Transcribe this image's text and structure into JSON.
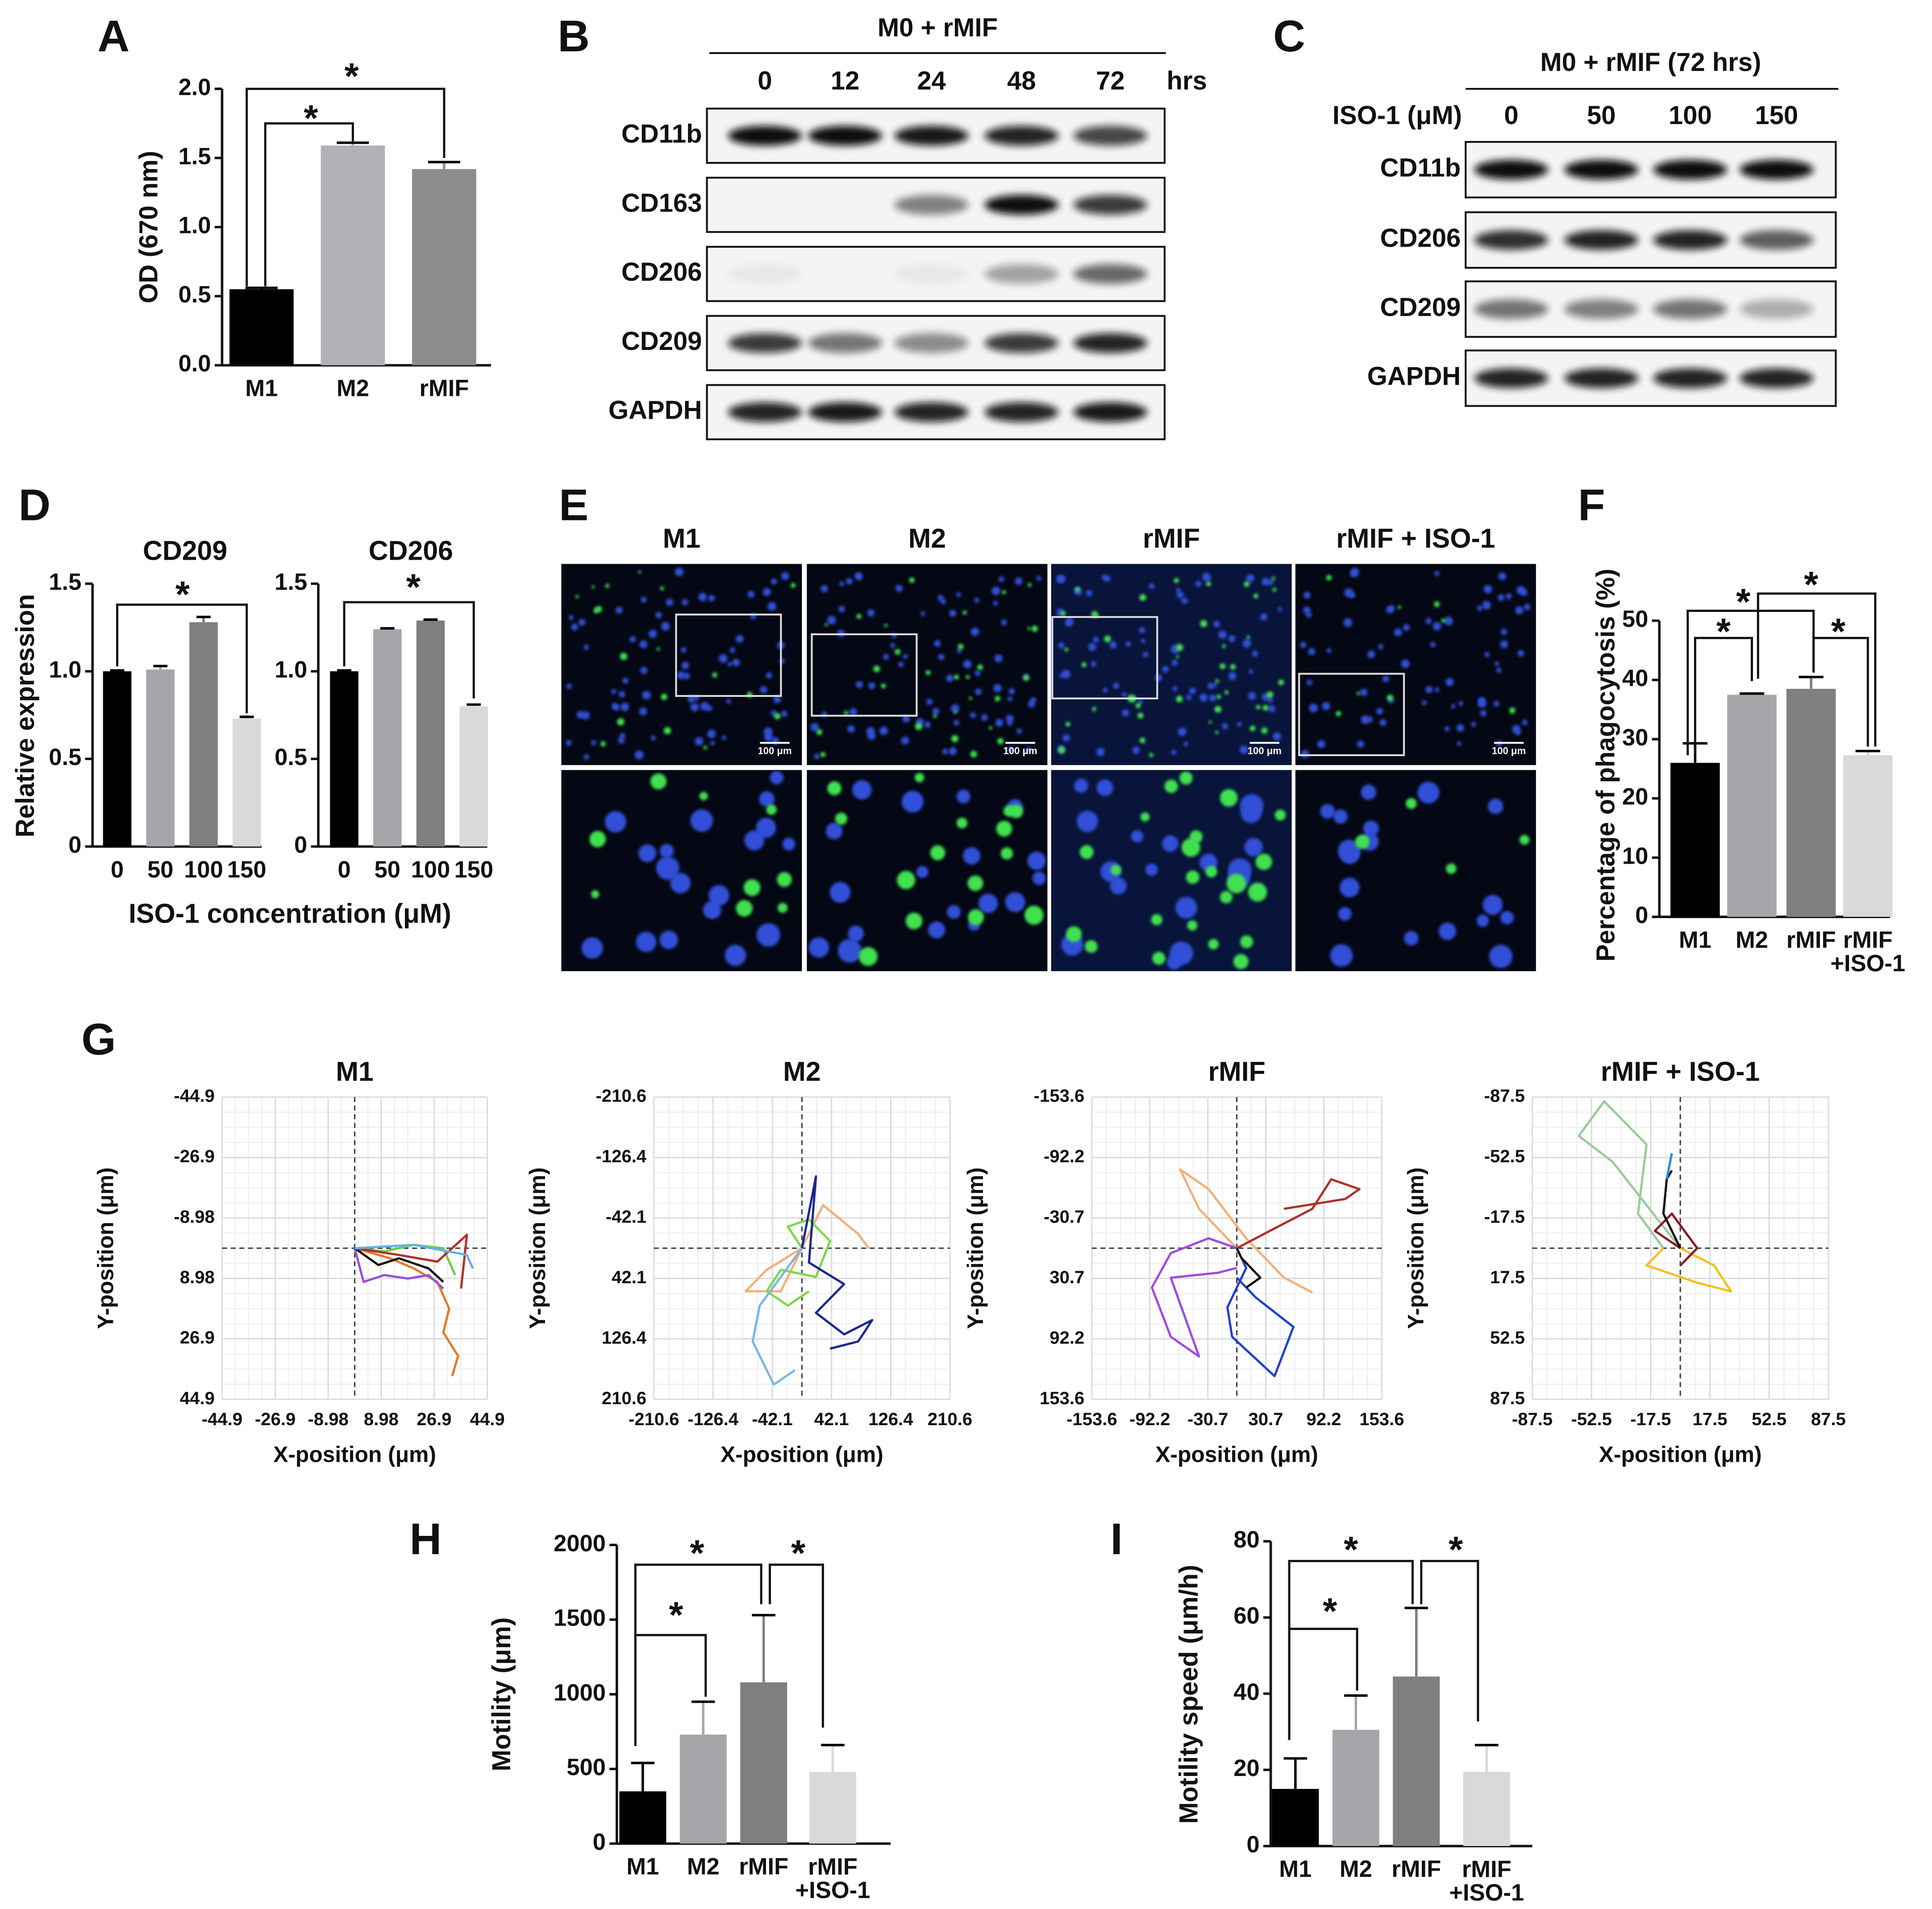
{
  "panel_labels": [
    "A",
    "B",
    "C",
    "D",
    "E",
    "F",
    "G",
    "H",
    "I"
  ],
  "blot_b": {
    "header": "M0 + rMIF",
    "lanes": [
      "0",
      "12",
      "24",
      "48",
      "72"
    ],
    "unit": "hrs",
    "proteins": [
      "CD11b",
      "CD163",
      "CD206",
      "CD209",
      "GAPDH"
    ]
  },
  "blot_c": {
    "header": "M0 + rMIF (72 hrs)",
    "treatment": "ISO-1 (μM)",
    "lanes": [
      "0",
      "50",
      "100",
      "150"
    ],
    "proteins": [
      "CD11b",
      "CD206",
      "CD209",
      "GAPDH"
    ]
  },
  "micrographs": {
    "groups": [
      "M1",
      "M2",
      "rMIF",
      "rMIF + ISO-1"
    ],
    "scale_bar": "100 μm"
  },
  "chart_data": [
    {
      "type": "bar",
      "ylabel": "OD (670 nm)",
      "categories": [
        "M1",
        "M2",
        "rMIF"
      ],
      "values": [
        0.55,
        1.59,
        1.42
      ],
      "errors": [
        0.01,
        0.02,
        0.05
      ],
      "colors": [
        "#000000",
        "#b2b2b6",
        "#8c8c8c"
      ],
      "ylim": [
        0,
        2
      ],
      "yticks": [
        {
          "value": 0,
          "label": "0.0"
        },
        0.5,
        {
          "value": 1,
          "label": "1.0"
        },
        1.5,
        {
          "value": 2,
          "label": "2.0"
        }
      ],
      "annotations": [
        "*",
        "*"
      ]
    },
    {
      "type": "bar",
      "title": "CD209",
      "ylabel": "Relative expression",
      "xlabel": "ISO-1 concentration (μM)",
      "categories": [
        "0",
        "50",
        "100",
        "150"
      ],
      "values": [
        1.0,
        1.01,
        1.28,
        0.73
      ],
      "errors": [
        0.005,
        0.02,
        0.03,
        0.01
      ],
      "colors": [
        "#000000",
        "#a6a6aa",
        "#7f7f7f",
        "#d9d9d9"
      ],
      "ylim": [
        0,
        1.5
      ],
      "yticks": [
        0,
        0.5,
        {
          "value": 1,
          "label": "1.0"
        },
        1.5
      ],
      "annotations": [
        "*"
      ]
    },
    {
      "type": "bar",
      "title": "CD206",
      "categories": [
        "0",
        "50",
        "100",
        "150"
      ],
      "values": [
        1.0,
        1.24,
        1.29,
        0.8
      ],
      "errors": [
        0.005,
        0.005,
        0.005,
        0.01
      ],
      "colors": [
        "#000000",
        "#a6a6aa",
        "#7f7f7f",
        "#d9d9d9"
      ],
      "ylim": [
        0,
        1.5
      ],
      "yticks": [
        0,
        0.5,
        {
          "value": 1,
          "label": "1.0"
        },
        1.5
      ],
      "annotations": [
        "*"
      ]
    },
    {
      "type": "bar",
      "ylabel": "Percentage of phagocytosis (%)",
      "categories": [
        "M1",
        "M2",
        "rMIF",
        "rMIF\n+ISO-1"
      ],
      "values": [
        26,
        37.5,
        38.5,
        27.3
      ],
      "errors": [
        3.3,
        0.2,
        2,
        0.7
      ],
      "colors": [
        "#000000",
        "#a6a6aa",
        "#7f7f7f",
        "#d9d9d9"
      ],
      "ylim": [
        0,
        50
      ],
      "yticks": [
        0,
        10,
        20,
        30,
        40,
        50
      ],
      "annotations": [
        "*",
        "*",
        "*",
        "*"
      ]
    },
    {
      "type": "line",
      "title": "M1",
      "xlabel": "X-position (μm)",
      "ylabel": "Y-position (μm)",
      "xlim": [
        -44.9,
        44.9
      ],
      "ylim": [
        -44.9,
        44.9
      ],
      "yreverse": true,
      "grid": true,
      "xticks": [
        -44.9,
        -26.9,
        -8.98,
        8.98,
        26.9,
        44.9
      ],
      "yticks": [
        -44.9,
        -26.9,
        -8.98,
        8.98,
        26.9,
        44.9
      ],
      "series": [
        {
          "color": "#e07a2a",
          "x": [
            0,
            12,
            20,
            28,
            32,
            30,
            35,
            33
          ],
          "y": [
            0,
            3,
            6,
            10,
            18,
            25,
            32,
            38
          ]
        },
        {
          "color": "#9a4fd8",
          "x": [
            0,
            3,
            10,
            18,
            25,
            30
          ],
          "y": [
            0,
            10,
            8,
            9,
            8,
            12
          ]
        },
        {
          "color": "#66d23a",
          "x": [
            0,
            10,
            20,
            30,
            34
          ],
          "y": [
            0,
            1,
            -1,
            0,
            8
          ]
        },
        {
          "color": "#111111",
          "x": [
            0,
            8,
            15,
            25,
            30
          ],
          "y": [
            0,
            5,
            3,
            6,
            10
          ]
        },
        {
          "color": "#b0302a",
          "x": [
            0,
            15,
            28,
            38,
            36
          ],
          "y": [
            0,
            2,
            4,
            -4,
            12
          ]
        },
        {
          "color": "#6aaee8",
          "x": [
            0,
            20,
            38,
            40
          ],
          "y": [
            0,
            -1,
            2,
            6
          ]
        }
      ]
    },
    {
      "type": "line",
      "title": "M2",
      "xlabel": "X-position (μm)",
      "ylabel": "Y-position (μm)",
      "xlim": [
        -210.6,
        210.6
      ],
      "ylim": [
        -210.6,
        210.6
      ],
      "yreverse": true,
      "grid": true,
      "xticks": [
        -210.6,
        -126.4,
        -42.1,
        42.1,
        126.4,
        210.6
      ],
      "yticks": [
        -210.6,
        -126.4,
        -42.1,
        42.1,
        126.4,
        210.6
      ],
      "series": [
        {
          "color": "#f0b078",
          "x": [
            0,
            -50,
            -80,
            -30,
            30,
            80,
            95
          ],
          "y": [
            0,
            30,
            60,
            60,
            -60,
            -20,
            0
          ]
        },
        {
          "color": "#7ad84a",
          "x": [
            0,
            -20,
            10,
            40,
            20,
            -30,
            -50,
            -20,
            10
          ],
          "y": [
            0,
            -30,
            -40,
            -10,
            40,
            30,
            60,
            80,
            60
          ]
        },
        {
          "color": "#1a2a8a",
          "x": [
            0,
            20,
            10,
            60,
            20,
            60,
            100,
            80,
            40
          ],
          "y": [
            0,
            -100,
            20,
            50,
            90,
            120,
            100,
            130,
            140
          ]
        },
        {
          "color": "#7ab6e8",
          "x": [
            0,
            -60,
            -70,
            -40,
            -10
          ],
          "y": [
            0,
            80,
            130,
            190,
            170
          ]
        }
      ]
    },
    {
      "type": "line",
      "title": "rMIF",
      "xlabel": "X-position (μm)",
      "ylabel": "Y-position (μm)",
      "xlim": [
        -153.6,
        153.6
      ],
      "ylim": [
        -153.6,
        153.6
      ],
      "yreverse": true,
      "grid": true,
      "xticks": [
        -153.6,
        -92.2,
        -30.7,
        30.7,
        92.2,
        153.6
      ],
      "yticks": [
        -153.6,
        -92.2,
        -30.7,
        30.7,
        92.2,
        153.6
      ],
      "series": [
        {
          "color": "#f0b078",
          "x": [
            0,
            -40,
            -60,
            -30,
            10,
            50,
            80
          ],
          "y": [
            0,
            -40,
            -80,
            -60,
            -10,
            30,
            45
          ]
        },
        {
          "color": "#a04ae0",
          "x": [
            0,
            -30,
            -70,
            -90,
            -70,
            -40,
            -70,
            -20,
            0
          ],
          "y": [
            0,
            -10,
            5,
            40,
            90,
            110,
            30,
            25,
            20
          ]
        },
        {
          "color": "#1f3fd8",
          "x": [
            0,
            10,
            -10,
            -5,
            40,
            60,
            20,
            0
          ],
          "y": [
            0,
            20,
            60,
            90,
            130,
            80,
            50,
            30
          ]
        },
        {
          "color": "#b0302a",
          "x": [
            0,
            40,
            80,
            100,
            130,
            115,
            50
          ],
          "y": [
            0,
            -20,
            -40,
            -70,
            -60,
            -50,
            -40
          ]
        },
        {
          "color": "#111111",
          "x": [
            0,
            5,
            15,
            25,
            10
          ],
          "y": [
            0,
            10,
            20,
            30,
            40
          ]
        }
      ]
    },
    {
      "type": "line",
      "title": "rMIF + ISO-1",
      "xlabel": "X-position (μm)",
      "ylabel": "Y-position (μm)",
      "xlim": [
        -87.5,
        87.5
      ],
      "ylim": [
        -87.5,
        87.5
      ],
      "yreverse": true,
      "grid": true,
      "xticks": [
        -87.5,
        -52.5,
        -17.5,
        17.5,
        52.5,
        87.5
      ],
      "yticks": [
        -87.5,
        -52.5,
        -17.5,
        17.5,
        52.5,
        87.5
      ],
      "series": [
        {
          "color": "#98cc98",
          "x": [
            0,
            -40,
            -60,
            -45,
            -20,
            -25,
            -10
          ],
          "y": [
            0,
            -50,
            -65,
            -85,
            -60,
            -20,
            0
          ]
        },
        {
          "color": "#f0c020",
          "x": [
            0,
            20,
            30,
            10,
            -20,
            -10
          ],
          "y": [
            0,
            10,
            25,
            20,
            10,
            0
          ]
        },
        {
          "color": "#8a1a2a",
          "x": [
            0,
            -15,
            -5,
            10,
            0
          ],
          "y": [
            0,
            -10,
            -20,
            0,
            10
          ]
        },
        {
          "color": "#111111",
          "x": [
            0,
            -10,
            -8,
            -5
          ],
          "y": [
            0,
            -20,
            -40,
            -45
          ]
        },
        {
          "color": "#2a8ae0",
          "x": [
            -8,
            -5
          ],
          "y": [
            -40,
            -55
          ]
        }
      ]
    },
    {
      "type": "bar",
      "ylabel": "Motility (μm)",
      "categories": [
        "M1",
        "M2",
        "rMIF",
        "rMIF\n+ISO-1"
      ],
      "values": [
        350,
        730,
        1080,
        480
      ],
      "errors": [
        190,
        220,
        450,
        180
      ],
      "colors": [
        "#000000",
        "#a6a6aa",
        "#7f7f7f",
        "#d9d9d9"
      ],
      "ylim": [
        0,
        2000
      ],
      "yticks": [
        0,
        500,
        1000,
        1500,
        2000
      ],
      "annotations": [
        "*",
        "*",
        "*"
      ]
    },
    {
      "type": "bar",
      "ylabel": "Motility speed (μm/h)",
      "categories": [
        "M1",
        "M2",
        "rMIF",
        "rMIF\n+ISO-1"
      ],
      "values": [
        15,
        30.5,
        44.5,
        19.5
      ],
      "errors": [
        8,
        9,
        18,
        7
      ],
      "colors": [
        "#000000",
        "#a6a6aa",
        "#7f7f7f",
        "#d9d9d9"
      ],
      "ylim": [
        0,
        80
      ],
      "yticks": [
        0,
        20,
        40,
        60,
        80
      ],
      "annotations": [
        "*",
        "*",
        "*"
      ]
    }
  ]
}
